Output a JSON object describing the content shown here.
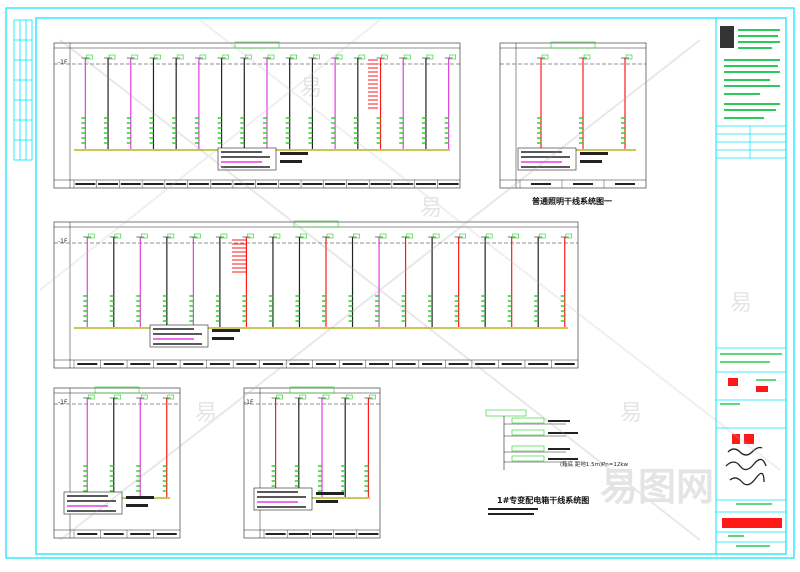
{
  "drawing": {
    "caption_1": "普通照明干线系统图一",
    "caption_2": "1#专变配电箱干线系统图",
    "level_label": "-1F",
    "legend_left": "(箱底  距地1.5m)",
    "legend_right": "Pn=12kw"
  },
  "watermark": {
    "brand": "易图网",
    "mark": "易"
  },
  "colors": {
    "frame": "#00e5ff",
    "line": "#222222",
    "red": "#ff1a1a",
    "magenta": "#e040e0",
    "green": "#22cc22",
    "yellow": "#ffff66"
  }
}
